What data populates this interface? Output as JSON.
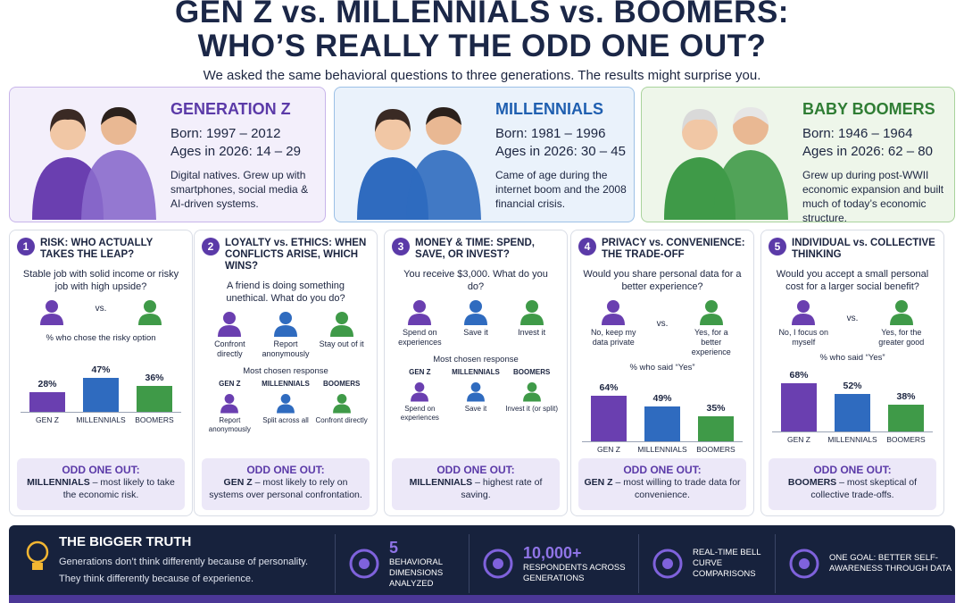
{
  "header": {
    "title_line1": "GEN Z vs. MILLENNIALS vs. BOOMERS:",
    "title_line2": "WHO’S REALLY THE ODD ONE OUT?",
    "subtitle": "We asked the same behavioral questions to three generations. The results might surprise you."
  },
  "generations": [
    {
      "name": "GENERATION Z",
      "born": "Born: 1997 – 2012",
      "ages": "Ages in 2026: 14 – 29",
      "description": "Digital natives. Grew up with smartphones, social media & AI-driven systems."
    },
    {
      "name": "MILLENNIALS",
      "born": "Born: 1981 – 1996",
      "ages": "Ages in 2026: 30 – 45",
      "description": "Came of age during the internet boom and the 2008 financial crisis."
    },
    {
      "name": "BABY BOOMERS",
      "born": "Born: 1946 – 1964",
      "ages": "Ages in 2026: 62 – 80",
      "description": "Grew up during post-WWII economic expansion and built much of today’s economic structure."
    }
  ],
  "panels": [
    {
      "number": 1,
      "title": "RISK: WHO ACTUALLY TAKES THE LEAP?",
      "question": "Stable job with solid income or risky job with high upside?",
      "vs": "vs.",
      "chart": {
        "caption": "% who chose the risky option",
        "categories": [
          "GEN Z",
          "MILLENNIALS",
          "BOOMERS"
        ],
        "values": [
          28,
          47,
          36
        ],
        "value_labels": [
          "28%",
          "47%",
          "36%"
        ]
      },
      "odd_label": "ODD ONE OUT:",
      "odd_group": "MILLENNIALS",
      "odd_text": "– most likely to take the economic risk."
    },
    {
      "number": 2,
      "title": "LOYALTY vs. ETHICS: WHEN CONFLICTS ARISE, WHICH WINS?",
      "question": "A friend is doing something unethical. What do you do?",
      "options": [
        "Confront directly",
        "Report anonymously",
        "Stay out of it"
      ],
      "responses": {
        "caption": "Most chosen response",
        "groups": [
          "GEN Z",
          "MILLENNIALS",
          "BOOMERS"
        ],
        "answers": [
          "Report anonymously",
          "Split across all",
          "Confront directly"
        ]
      },
      "odd_label": "ODD ONE OUT:",
      "odd_group": "GEN Z",
      "odd_text": "– most likely to rely on systems over personal confrontation."
    },
    {
      "number": 3,
      "title": "MONEY & TIME: SPEND, SAVE, OR INVEST?",
      "question": "You receive $3,000. What do you do?",
      "options": [
        "Spend on experiences",
        "Save it",
        "Invest it"
      ],
      "responses": {
        "caption": "Most chosen response",
        "groups": [
          "GEN Z",
          "MILLENNIALS",
          "BOOMERS"
        ],
        "answers": [
          "Spend on experiences",
          "Save it",
          "Invest it (or split)"
        ]
      },
      "odd_label": "ODD ONE OUT:",
      "odd_group": "MILLENNIALS",
      "odd_text": "– highest rate of saving."
    },
    {
      "number": 4,
      "title": "PRIVACY vs. CONVENIENCE: THE TRADE-OFF",
      "question": "Would you share personal data for a better experience?",
      "vs": "vs.",
      "options": [
        "No, keep my data private",
        "Yes, for a better experience"
      ],
      "chart": {
        "caption": "% who said “Yes”",
        "categories": [
          "GEN Z",
          "MILLENNIALS",
          "BOOMERS"
        ],
        "values": [
          64,
          49,
          35
        ],
        "value_labels": [
          "64%",
          "49%",
          "35%"
        ]
      },
      "odd_label": "ODD ONE OUT:",
      "odd_group": "GEN Z",
      "odd_text": "– most willing to trade data for convenience."
    },
    {
      "number": 5,
      "title": "INDIVIDUAL vs. COLLECTIVE THINKING",
      "question": "Would you accept a small personal cost for a larger social benefit?",
      "vs": "vs.",
      "options": [
        "No, I focus on myself",
        "Yes, for the greater good"
      ],
      "chart": {
        "caption": "% who said “Yes”",
        "categories": [
          "GEN Z",
          "MILLENNIALS",
          "BOOMERS"
        ],
        "values": [
          68,
          52,
          38
        ],
        "value_labels": [
          "68%",
          "52%",
          "38%"
        ]
      },
      "odd_label": "ODD ONE OUT:",
      "odd_group": "BOOMERS",
      "odd_text": "– most skeptical of collective trade-offs."
    }
  ],
  "footer": {
    "title": "THE BIGGER TRUTH",
    "body": "Generations don’t think differently because of personality. They think differently because of experience.",
    "stats": [
      {
        "value": "5",
        "label": "BEHAVIORAL DIMENSIONS ANALYZED"
      },
      {
        "value": "10,000+",
        "label": "RESPONDENTS ACROSS GENERATIONS"
      },
      {
        "label": "REAL-TIME BELL CURVE COMPARISONS"
      },
      {
        "label": "ONE GOAL: BETTER SELF-AWARENESS THROUGH DATA"
      }
    ]
  }
}
